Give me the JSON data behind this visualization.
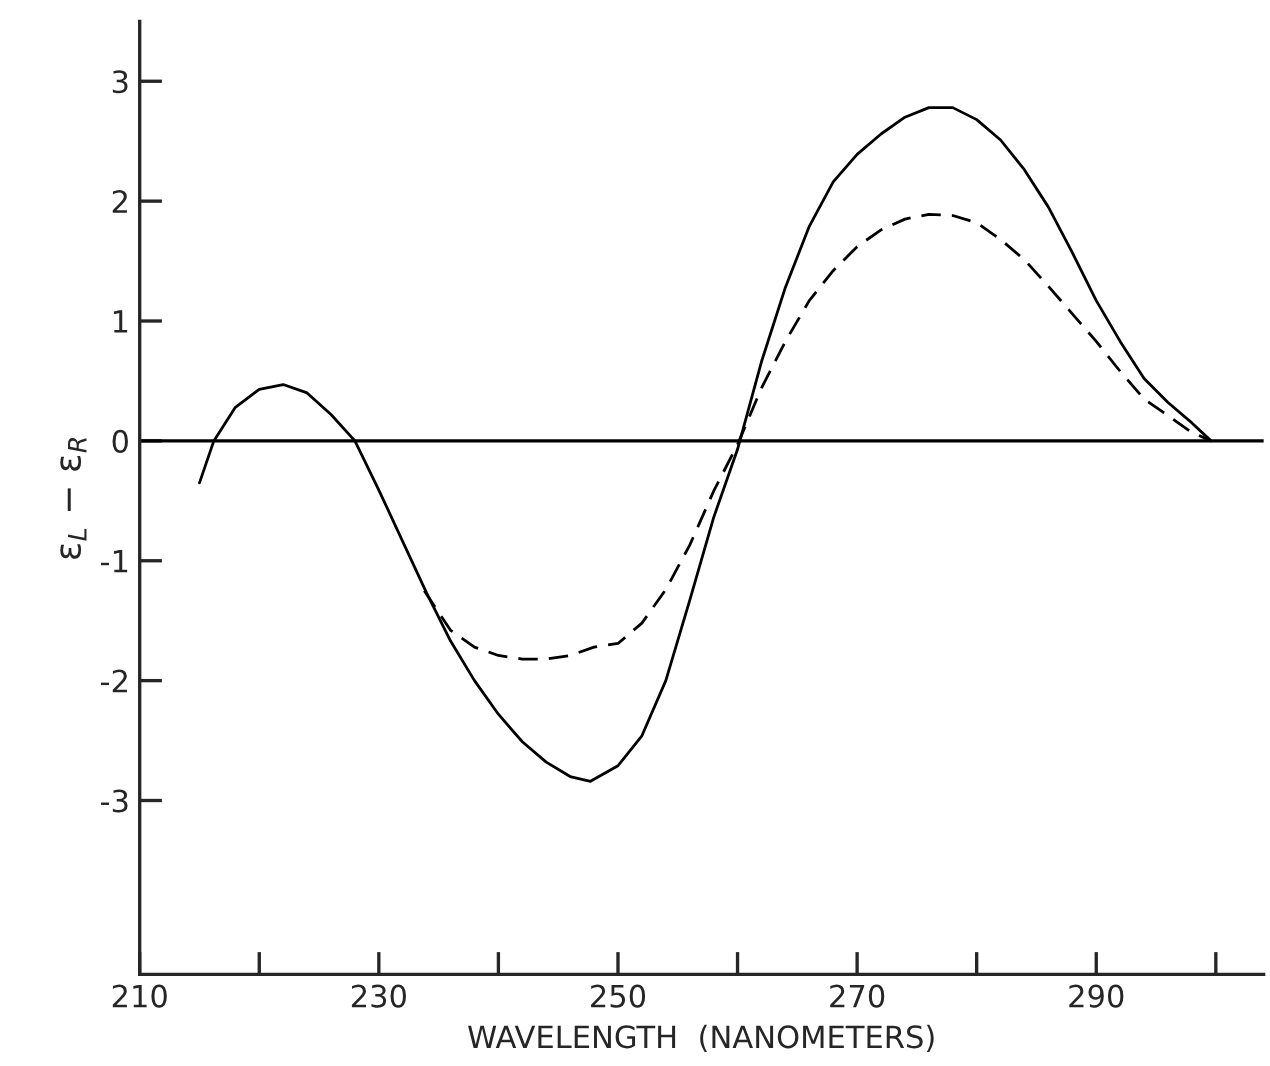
{
  "chart_data": {
    "type": "line",
    "xlabel": "WAVELENGTH  (NANOMETERS)",
    "ylabel": "ε$_{L}$ − ε$_{R}$",
    "xlim": [
      210,
      304
    ],
    "ylim": [
      -4.45,
      3.5
    ],
    "xticks": [
      210,
      {
        "value": 220,
        "label": null
      },
      230,
      {
        "value": 240,
        "label": null
      },
      250,
      {
        "value": 260,
        "label": null
      },
      270,
      {
        "value": 280,
        "label": null
      },
      290,
      {
        "value": 300,
        "label": null
      }
    ],
    "yticks": [
      {
        "value": -3,
        "label": "-3"
      },
      {
        "value": -2,
        "label": "-2"
      },
      {
        "value": -1,
        "label": "-1"
      },
      0,
      1,
      2,
      3
    ],
    "grid": false,
    "legend": false,
    "marker": "none",
    "ref_lines": [
      {
        "axis": "y",
        "value": 0,
        "color": "#000000",
        "line_style": "solid"
      }
    ],
    "series": [
      {
        "color": "#000000",
        "line_style": "solid",
        "x": [
          215,
          216.2,
          218,
          220,
          222,
          224,
          226,
          228,
          230,
          232,
          234,
          236,
          238,
          240,
          242,
          244,
          246,
          247.7,
          250,
          252,
          254,
          256,
          258,
          260,
          262,
          264,
          266,
          268,
          270,
          272,
          274,
          276,
          278,
          280,
          282,
          284,
          286,
          288,
          290,
          292,
          294,
          296,
          298,
          299.6
        ],
        "values": [
          -0.35,
          0,
          0.28,
          0.43,
          0.47,
          0.4,
          0.22,
          0,
          -0.41,
          -0.84,
          -1.27,
          -1.67,
          -2.0,
          -2.28,
          -2.51,
          -2.68,
          -2.8,
          -2.84,
          -2.71,
          -2.46,
          -2.0,
          -1.33,
          -0.64,
          -0.07,
          0.66,
          1.28,
          1.79,
          2.16,
          2.39,
          2.56,
          2.7,
          2.78,
          2.78,
          2.68,
          2.51,
          2.26,
          1.95,
          1.57,
          1.17,
          0.83,
          0.52,
          0.32,
          0.15,
          0
        ]
      },
      {
        "color": "#000000",
        "line_style": "dashed",
        "x": [
          233.8,
          236,
          238,
          240,
          242,
          244,
          246,
          248,
          250,
          252,
          254,
          256,
          258,
          260,
          262,
          264,
          266,
          268,
          270,
          272,
          274,
          276,
          278,
          280,
          282,
          284,
          286,
          288,
          290,
          292,
          294,
          296,
          298,
          299.6
        ],
        "values": [
          -1.25,
          -1.58,
          -1.72,
          -1.79,
          -1.82,
          -1.82,
          -1.79,
          -1.72,
          -1.69,
          -1.52,
          -1.24,
          -0.87,
          -0.42,
          -0.03,
          0.44,
          0.83,
          1.17,
          1.42,
          1.62,
          1.76,
          1.85,
          1.89,
          1.88,
          1.82,
          1.68,
          1.51,
          1.29,
          1.06,
          0.83,
          0.58,
          0.35,
          0.21,
          0.07,
          0
        ]
      }
    ]
  }
}
